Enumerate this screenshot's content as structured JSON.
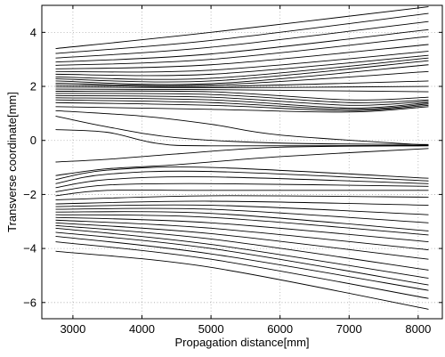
{
  "chart_data": {
    "type": "line",
    "title": "",
    "xlabel": "Propagation distance[mm]",
    "ylabel": "Transverse coordinate[mm]",
    "xlim": [
      2550,
      8350
    ],
    "ylim": [
      -6.6,
      5.0
    ],
    "xticks": [
      3000,
      4000,
      5000,
      6000,
      7000,
      8000
    ],
    "yticks": [
      -6,
      -4,
      -2,
      0,
      2,
      4
    ],
    "grid": true,
    "series": [
      {
        "x": [
          2750,
          5000,
          8150
        ],
        "y": [
          3.4,
          4.0,
          4.95
        ]
      },
      {
        "x": [
          2750,
          5000,
          8150
        ],
        "y": [
          3.22,
          3.7,
          4.7
        ]
      },
      {
        "x": [
          2750,
          5000,
          8150
        ],
        "y": [
          3.05,
          3.45,
          4.4
        ]
      },
      {
        "x": [
          2750,
          5000,
          8150
        ],
        "y": [
          2.9,
          3.2,
          4.1
        ]
      },
      {
        "x": [
          2750,
          5000,
          8150
        ],
        "y": [
          2.78,
          3.0,
          3.85
        ]
      },
      {
        "x": [
          2750,
          5000,
          8150
        ],
        "y": [
          2.65,
          2.8,
          3.55
        ]
      },
      {
        "x": [
          2750,
          5000,
          8150
        ],
        "y": [
          2.55,
          2.6,
          3.3
        ]
      },
      {
        "x": [
          2750,
          5000,
          8150
        ],
        "y": [
          2.45,
          2.45,
          3.15
        ]
      },
      {
        "x": [
          2750,
          5000,
          8150
        ],
        "y": [
          2.35,
          2.3,
          3.05
        ]
      },
      {
        "x": [
          2750,
          5000,
          8150
        ],
        "y": [
          2.28,
          2.2,
          2.95
        ]
      },
      {
        "x": [
          2750,
          5000,
          8150
        ],
        "y": [
          2.2,
          2.1,
          2.8
        ]
      },
      {
        "x": [
          2750,
          5000,
          8150
        ],
        "y": [
          2.12,
          2.05,
          2.55
        ]
      },
      {
        "x": [
          2750,
          5000,
          8150
        ],
        "y": [
          2.05,
          2.0,
          2.2
        ]
      },
      {
        "x": [
          2750,
          5000,
          8150
        ],
        "y": [
          1.98,
          1.95,
          2.0
        ]
      },
      {
        "x": [
          2750,
          5000,
          8150
        ],
        "y": [
          1.9,
          1.88,
          1.8
        ]
      },
      {
        "x": [
          2750,
          5000,
          7000,
          8150
        ],
        "y": [
          1.82,
          1.8,
          1.5,
          1.6
        ]
      },
      {
        "x": [
          2750,
          5000,
          7000,
          8150
        ],
        "y": [
          1.74,
          1.7,
          1.4,
          1.5
        ]
      },
      {
        "x": [
          2750,
          5000,
          7000,
          8150
        ],
        "y": [
          1.66,
          1.6,
          1.3,
          1.45
        ]
      },
      {
        "x": [
          2750,
          5000,
          7000,
          8150
        ],
        "y": [
          1.58,
          1.5,
          1.2,
          1.4
        ]
      },
      {
        "x": [
          2750,
          5000,
          7000,
          8150
        ],
        "y": [
          1.5,
          1.4,
          1.15,
          1.35
        ]
      },
      {
        "x": [
          2750,
          5000,
          7000,
          8150
        ],
        "y": [
          1.4,
          1.3,
          1.1,
          1.3
        ]
      },
      {
        "x": [
          2750,
          5000,
          7000,
          8150
        ],
        "y": [
          1.25,
          1.15,
          1.05,
          1.25
        ]
      },
      {
        "x": [
          2750,
          4000,
          5000,
          6000,
          8150
        ],
        "y": [
          1.1,
          0.9,
          0.6,
          0.2,
          -0.18
        ]
      },
      {
        "x": [
          2750,
          3500,
          4500,
          6000,
          8150
        ],
        "y": [
          0.9,
          0.5,
          0.1,
          -0.1,
          -0.15
        ]
      },
      {
        "x": [
          2750,
          3500,
          4200,
          5000,
          8150
        ],
        "y": [
          0.4,
          0.3,
          -0.1,
          -0.2,
          -0.18
        ]
      },
      {
        "x": [
          2750,
          3500,
          4500,
          6000,
          8150
        ],
        "y": [
          -0.8,
          -0.7,
          -0.5,
          -0.25,
          -0.2
        ]
      },
      {
        "x": [
          2750,
          3500,
          4500,
          6000,
          8150
        ],
        "y": [
          -1.3,
          -1.05,
          -0.9,
          -0.6,
          -0.3
        ]
      },
      {
        "x": [
          2750,
          3500,
          5000,
          8150
        ],
        "y": [
          -1.45,
          -1.1,
          -1.0,
          -1.4
        ]
      },
      {
        "x": [
          2750,
          3500,
          5000,
          8150
        ],
        "y": [
          -1.6,
          -1.25,
          -1.15,
          -1.5
        ]
      },
      {
        "x": [
          2750,
          3500,
          5000,
          8150
        ],
        "y": [
          -1.75,
          -1.45,
          -1.35,
          -1.6
        ]
      },
      {
        "x": [
          2750,
          3500,
          5000,
          8150
        ],
        "y": [
          -1.9,
          -1.65,
          -1.6,
          -1.7
        ]
      },
      {
        "x": [
          2750,
          3500,
          5000,
          8150
        ],
        "y": [
          -2.05,
          -1.85,
          -1.85,
          -1.85
        ]
      },
      {
        "x": [
          2750,
          5000,
          8150
        ],
        "y": [
          -2.2,
          -2.05,
          -2.1
        ]
      },
      {
        "x": [
          2750,
          5000,
          8150
        ],
        "y": [
          -2.35,
          -2.25,
          -2.4
        ]
      },
      {
        "x": [
          2750,
          5000,
          8150
        ],
        "y": [
          -2.45,
          -2.4,
          -2.75
        ]
      },
      {
        "x": [
          2750,
          5000,
          8150
        ],
        "y": [
          -2.55,
          -2.55,
          -3.05
        ]
      },
      {
        "x": [
          2750,
          5000,
          8150
        ],
        "y": [
          -2.65,
          -2.7,
          -3.35
        ]
      },
      {
        "x": [
          2750,
          5000,
          8150
        ],
        "y": [
          -2.75,
          -2.85,
          -3.5
        ]
      },
      {
        "x": [
          2750,
          5000,
          8150
        ],
        "y": [
          -2.85,
          -3.05,
          -3.75
        ]
      },
      {
        "x": [
          2750,
          5000,
          8150
        ],
        "y": [
          -2.95,
          -3.25,
          -4.05
        ]
      },
      {
        "x": [
          2750,
          5000,
          8150
        ],
        "y": [
          -3.05,
          -3.45,
          -4.4
        ]
      },
      {
        "x": [
          2750,
          5000,
          8150
        ],
        "y": [
          -3.15,
          -3.65,
          -4.8
        ]
      },
      {
        "x": [
          2750,
          5000,
          8150
        ],
        "y": [
          -3.25,
          -3.85,
          -5.1
        ]
      },
      {
        "x": [
          2750,
          5000,
          8150
        ],
        "y": [
          -3.4,
          -4.0,
          -5.35
        ]
      },
      {
        "x": [
          2750,
          5000,
          8150
        ],
        "y": [
          -3.55,
          -4.2,
          -5.55
        ]
      },
      {
        "x": [
          2750,
          5000,
          8150
        ],
        "y": [
          -3.75,
          -4.4,
          -5.85
        ]
      },
      {
        "x": [
          2750,
          5000,
          8150
        ],
        "y": [
          -4.1,
          -4.7,
          -6.25
        ]
      }
    ]
  }
}
